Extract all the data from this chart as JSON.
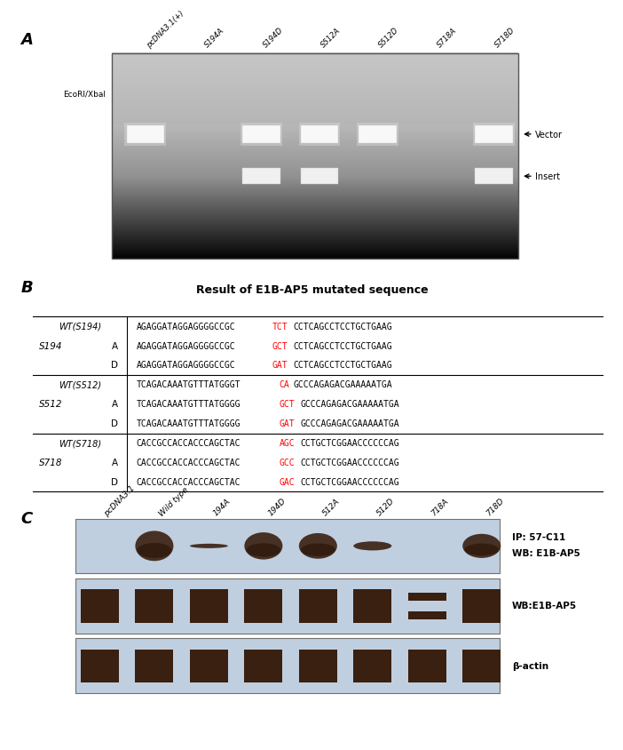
{
  "fig_width": 6.83,
  "fig_height": 8.07,
  "panel_A": {
    "label": "A",
    "ecori_label": "EcoRI/XbaI",
    "lane_labels": [
      "pcDNA3.1(+)",
      "S194A",
      "S194D",
      "S512A",
      "S512D",
      "S718A",
      "S718D"
    ],
    "vector_text": "Vector",
    "insert_text": "Insert",
    "band_config": [
      {
        "vector": true,
        "insert": false,
        "v_bright": true
      },
      {
        "vector": false,
        "insert": false,
        "v_bright": false
      },
      {
        "vector": true,
        "insert": true,
        "v_bright": true
      },
      {
        "vector": true,
        "insert": true,
        "v_bright": true
      },
      {
        "vector": true,
        "insert": false,
        "v_bright": true
      },
      {
        "vector": false,
        "insert": false,
        "v_bright": false
      },
      {
        "vector": true,
        "insert": true,
        "v_bright": true
      }
    ]
  },
  "panel_B": {
    "label": "B",
    "title": "Result of E1B-AP5 mutated sequence",
    "rows": [
      {
        "row_label": "WT(S194)",
        "sub": "",
        "pre": "AGAGGATAGGAGGGGCCGC",
        "red": "TCT",
        "post": "CCTCAGCCTCCTGCTGAAG",
        "is_wt": true
      },
      {
        "row_label": "S194",
        "sub": "A",
        "pre": "AGAGGATAGGAGGGGCCGC",
        "red": "GCT",
        "post": "CCTCAGCCTCCTGCTGAAG",
        "is_wt": false
      },
      {
        "row_label": "",
        "sub": "D",
        "pre": "AGAGGATAGGAGGGGCCGC",
        "red": "GAT",
        "post": "CCTCAGCCTCCTGCTGAAG",
        "is_wt": false
      },
      {
        "row_label": "WT(S512)",
        "sub": "",
        "pre": "TCAGACAAATGTTTATGGGT",
        "red": "CA",
        "post": "GCCCAGAGACGAAAAATGA",
        "is_wt": true
      },
      {
        "row_label": "S512",
        "sub": "A",
        "pre": "TCAGACAAATGTTTATGGGG",
        "red": "GCT",
        "post": "GCCCAGAGACGAAAAATGA",
        "is_wt": false
      },
      {
        "row_label": "",
        "sub": "D",
        "pre": "TCAGACAAATGTTTATGGGG",
        "red": "GAT",
        "post": "GCCCAGAGACGAAAAATGA",
        "is_wt": false
      },
      {
        "row_label": "WT(S718)",
        "sub": "",
        "pre": "CACCGCCACCACCCAGCTAC",
        "red": "AGC",
        "post": "CCTGCTCGGAACCCCCCAG",
        "is_wt": true
      },
      {
        "row_label": "S718",
        "sub": "A",
        "pre": "CACCGCCACCACCCAGCTAC",
        "red": "GCC",
        "post": "CCTGCTCGGAACCCCCCAG",
        "is_wt": false
      },
      {
        "row_label": "",
        "sub": "D",
        "pre": "CACCGCCACCACCCAGCTAC",
        "red": "GAC",
        "post": "CCTGCTCGGAACCCCCCAG",
        "is_wt": false
      }
    ]
  },
  "panel_C": {
    "label": "C",
    "lane_labels": [
      "pcDNA3.1",
      "Wild type",
      "194A",
      "194D",
      "512A",
      "512D",
      "718A",
      "718D"
    ],
    "blot1_line1": "IP: 57-C11",
    "blot1_line2": "WB: E1B-AP5",
    "blot2_label": "WB:E1B-AP5",
    "blot3_label": "β-actin",
    "blot_bg": "#c0cfe0",
    "band_color": "#3a2010"
  }
}
